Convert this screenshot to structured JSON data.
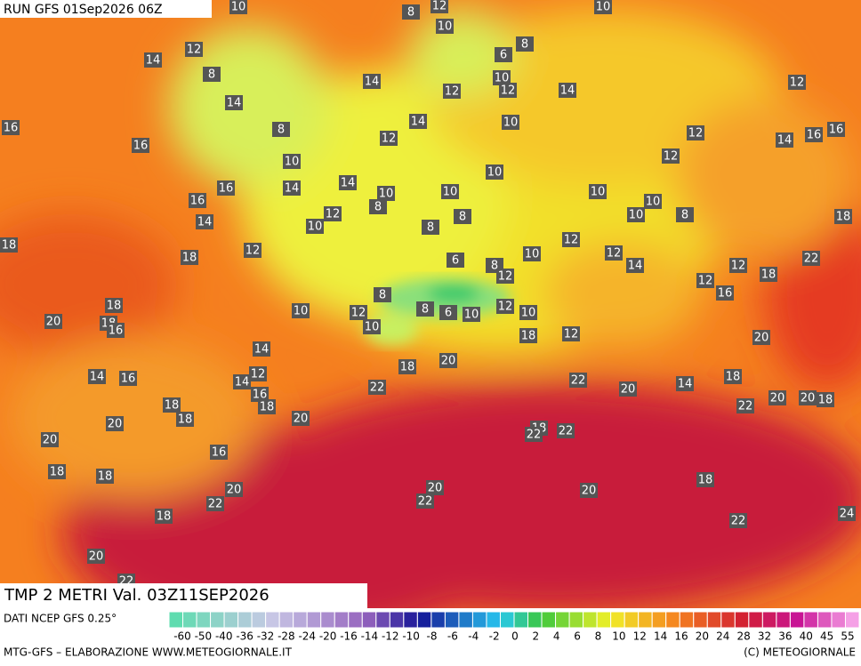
{
  "header": {
    "run": "RUN GFS 01Sep2026 06Z"
  },
  "map": {
    "labels": [
      10,
      8,
      12,
      10,
      12,
      14,
      8,
      10,
      8,
      6,
      14,
      10,
      12,
      12,
      14,
      12,
      16,
      14,
      14,
      8,
      10,
      12,
      16,
      12,
      14,
      16,
      16,
      10,
      10,
      12,
      16,
      14,
      14,
      10,
      10,
      10,
      16,
      8,
      12,
      8,
      10,
      10,
      8,
      14,
      10,
      8,
      18,
      18,
      12,
      12,
      10,
      12,
      18,
      6,
      22,
      8,
      12,
      14,
      12,
      18,
      12,
      16,
      8,
      18,
      20,
      18,
      16,
      10,
      12,
      8,
      6,
      10,
      12,
      10,
      10,
      18,
      12,
      20,
      14,
      18,
      20,
      14,
      16,
      12,
      14,
      22,
      22,
      20,
      14,
      18,
      16,
      18,
      20,
      20,
      18,
      18,
      22,
      18,
      20,
      20,
      18,
      22,
      22,
      20,
      16,
      18,
      18,
      18,
      20,
      20,
      20,
      22,
      22,
      18,
      22,
      24,
      20,
      22
    ]
  },
  "footer": {
    "product": "TMP 2 METRI Val. 03Z11SEP2026",
    "source": "DATI NCEP GFS 0.25°",
    "scale": [
      -60,
      -50,
      -40,
      -36,
      -32,
      -28,
      -24,
      -20,
      -16,
      -14,
      -12,
      -10,
      -8,
      -6,
      -4,
      -2,
      0,
      2,
      4,
      6,
      8,
      10,
      12,
      14,
      16,
      20,
      24,
      28,
      32,
      36,
      40,
      45,
      55
    ],
    "credit": "MTG-GFS – ELABORAZIONE WWW.METEOGIORNALE.IT",
    "copyright": "(C) METEOGIORNALE"
  }
}
